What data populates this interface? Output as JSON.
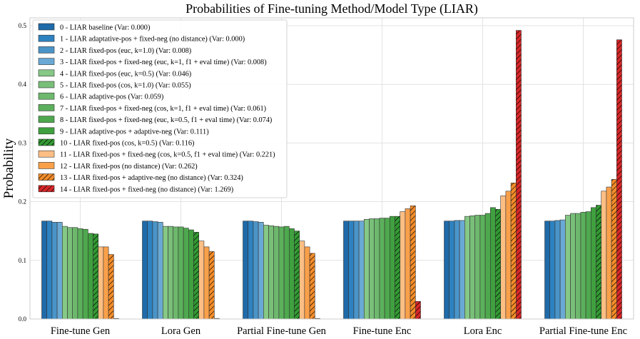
{
  "chart_data": {
    "type": "bar",
    "title": "Probabilities of Fine-tuning Method/Model Type (LIAR)",
    "ylabel": "Probability",
    "xlabel": "",
    "ylim": [
      0,
      0.5
    ],
    "yticks": [
      0.0,
      0.1,
      0.2,
      0.3,
      0.4,
      0.5
    ],
    "ytick_labels": [
      "0.0",
      "0.1",
      "0.2",
      "0.3",
      "0.4",
      "0.5"
    ],
    "grid": true,
    "legend_position": "top-left",
    "categories": [
      "Fine-tune Gen",
      "Lora Gen",
      "Partial Fine-tune Gen",
      "Fine-tune Enc",
      "Lora Enc",
      "Partial Fine-tune Enc"
    ],
    "series": [
      {
        "name": "0 - LIAR baseline (Var: 0.000)",
        "color": "#1f6aa8",
        "hatch": false,
        "values": [
          0.167,
          0.167,
          0.167,
          0.167,
          0.167,
          0.167
        ]
      },
      {
        "name": "1 - LIAR adaptative-pos + fixed-neg (no distance) (Var: 0.000)",
        "color": "#2e82c0",
        "hatch": false,
        "values": [
          0.167,
          0.167,
          0.167,
          0.167,
          0.167,
          0.167
        ]
      },
      {
        "name": "2 - LIAR fixed-pos (euc, k=1.0) (Var: 0.008)",
        "color": "#4a94c8",
        "hatch": false,
        "values": [
          0.165,
          0.166,
          0.166,
          0.167,
          0.168,
          0.168
        ]
      },
      {
        "name": "3 - LIAR fixed-pos + fixed-neg (euc, k=1, f1 + eval time) (Var: 0.008)",
        "color": "#6aa9d5",
        "hatch": false,
        "values": [
          0.165,
          0.165,
          0.165,
          0.167,
          0.168,
          0.169
        ]
      },
      {
        "name": "4 - LIAR fixed-pos (euc, k=0.5) (Var: 0.046)",
        "color": "#86c886",
        "hatch": false,
        "values": [
          0.158,
          0.158,
          0.16,
          0.17,
          0.175,
          0.177
        ]
      },
      {
        "name": "5 - LIAR fixed-pos (cos, k=1.0) (Var: 0.055)",
        "color": "#79bf79",
        "hatch": false,
        "values": [
          0.156,
          0.158,
          0.159,
          0.171,
          0.176,
          0.18
        ]
      },
      {
        "name": "6 - LIAR adaptive-pos (Var: 0.059)",
        "color": "#6db86d",
        "hatch": false,
        "values": [
          0.156,
          0.157,
          0.158,
          0.171,
          0.177,
          0.18
        ]
      },
      {
        "name": "7 - LIAR fixed-pos + fixed-neg (cos, k=1, f1 + eval time) (Var: 0.061)",
        "color": "#5cb05c",
        "hatch": false,
        "values": [
          0.154,
          0.157,
          0.157,
          0.172,
          0.177,
          0.182
        ]
      },
      {
        "name": "8 - LIAR fixed-pos + fixed-neg (euc, k=0.5, f1 + eval time) (Var: 0.074)",
        "color": "#4ea84e",
        "hatch": false,
        "values": [
          0.153,
          0.155,
          0.158,
          0.172,
          0.18,
          0.183
        ]
      },
      {
        "name": "9 - LIAR adaptive-pos + adaptive-neg (Var: 0.111)",
        "color": "#40a040",
        "hatch": false,
        "values": [
          0.146,
          0.152,
          0.154,
          0.175,
          0.19,
          0.19
        ]
      },
      {
        "name": "10 - LIAR fixed-pos (cos, k=0.5) (Var: 0.116)",
        "color": "#339a33",
        "hatch": true,
        "values": [
          0.145,
          0.148,
          0.15,
          0.175,
          0.187,
          0.194
        ]
      },
      {
        "name": "11 - LIAR fixed-pos + fixed-neg (cos, k=0.5, f1 + eval time) (Var: 0.221)",
        "color": "#fdbe84",
        "hatch": false,
        "values": [
          0.123,
          0.133,
          0.133,
          0.183,
          0.21,
          0.218
        ]
      },
      {
        "name": "12 - LIAR fixed-pos (no distance) (Var: 0.262)",
        "color": "#f9a04a",
        "hatch": false,
        "values": [
          0.123,
          0.123,
          0.123,
          0.188,
          0.218,
          0.225
        ]
      },
      {
        "name": "13 - LIAR fixed-pos + adaptive-neg (no distance) (Var: 0.324)",
        "color": "#f58d2a",
        "hatch": true,
        "values": [
          0.11,
          0.115,
          0.112,
          0.193,
          0.232,
          0.238
        ]
      },
      {
        "name": "14 - LIAR fixed-pos + fixed-neg (no distance) (Var: 1.269)",
        "color": "#d62728",
        "hatch": true,
        "values": [
          0.001,
          0.001,
          0.001,
          0.03,
          0.492,
          0.476
        ]
      }
    ]
  }
}
